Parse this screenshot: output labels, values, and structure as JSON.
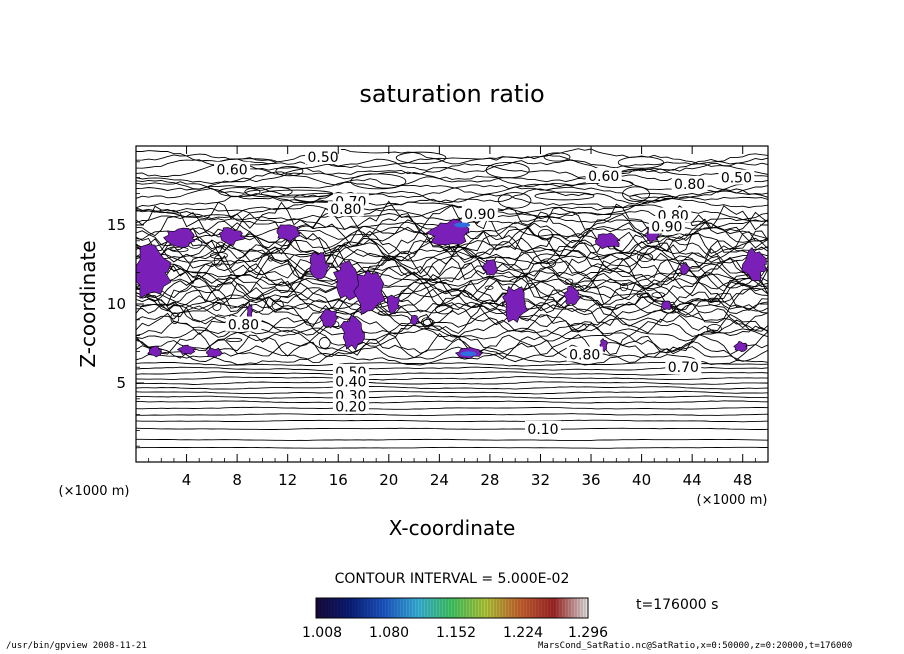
{
  "chart_data": {
    "type": "contour",
    "title": "saturation ratio",
    "xlabel": "X-coordinate",
    "ylabel": "Z-coordinate",
    "x_unit": "(×1000 m)",
    "z_unit": "(×1000 m)",
    "xlim": [
      0,
      50
    ],
    "zlim": [
      0,
      20
    ],
    "x_ticks": [
      4,
      8,
      12,
      16,
      20,
      24,
      28,
      32,
      36,
      40,
      44,
      48
    ],
    "z_ticks": [
      5,
      10,
      15
    ],
    "contour_labels": [
      {
        "text": "0.50",
        "x": 14.8,
        "z": 19.3
      },
      {
        "text": "0.60",
        "x": 7.6,
        "z": 18.5
      },
      {
        "text": "0.60",
        "x": 37.0,
        "z": 18.1
      },
      {
        "text": "0.80",
        "x": 43.8,
        "z": 17.6
      },
      {
        "text": "0.50",
        "x": 47.5,
        "z": 18.0
      },
      {
        "text": "0.70",
        "x": 17.0,
        "z": 16.5
      },
      {
        "text": "0.80",
        "x": 16.6,
        "z": 16.0
      },
      {
        "text": "0.90",
        "x": 27.2,
        "z": 15.7
      },
      {
        "text": "0.80",
        "x": 42.5,
        "z": 15.6
      },
      {
        "text": "0.90",
        "x": 42.0,
        "z": 14.9
      },
      {
        "text": "0.80",
        "x": 8.5,
        "z": 8.7
      },
      {
        "text": "0.80",
        "x": 35.5,
        "z": 6.8
      },
      {
        "text": "0.70",
        "x": 43.3,
        "z": 6.0
      },
      {
        "text": "0.50",
        "x": 17.0,
        "z": 5.7
      },
      {
        "text": "0.40",
        "x": 17.0,
        "z": 5.1
      },
      {
        "text": "0.30",
        "x": 17.0,
        "z": 4.2
      },
      {
        "text": "0.20",
        "x": 17.0,
        "z": 3.5
      },
      {
        "text": "0.10",
        "x": 32.2,
        "z": 2.1
      }
    ],
    "contour_interval": "CONTOUR INTERVAL = 5.000E-02",
    "colorbar": {
      "ticks": [
        "1.008",
        "1.080",
        "1.152",
        "1.224",
        "1.296"
      ],
      "colors": [
        "#1a0a3c",
        "#0a1e78",
        "#1e58c8",
        "#3cb4dc",
        "#46c864",
        "#b4c83c",
        "#c86432",
        "#a02828",
        "#e6e6e6"
      ]
    },
    "fill_color": "#7a1fb8",
    "time_label": "t=176000 s",
    "grid": false
  },
  "footer": {
    "left": "/usr/bin/gpview  2008-11-21",
    "right": "MarsCond_SatRatio.nc@SatRatio,x=0:50000,z=0:20000,t=176000"
  }
}
